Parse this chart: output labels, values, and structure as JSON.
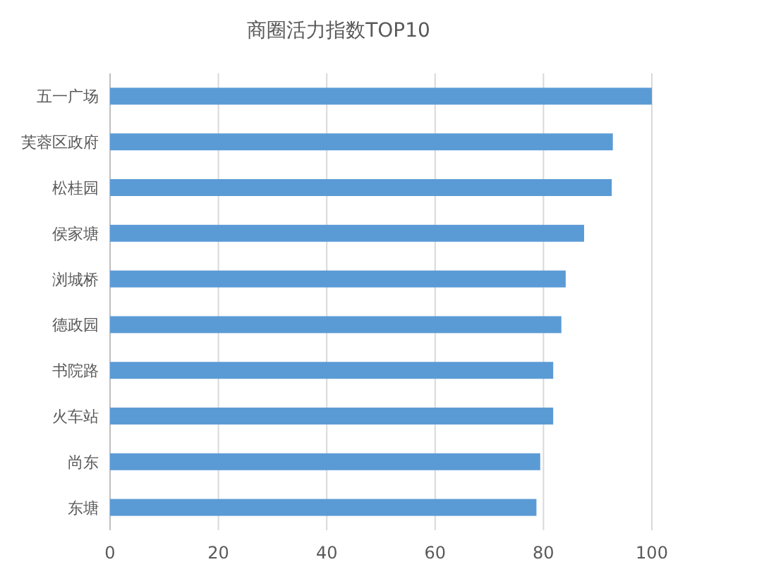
{
  "chart_data": {
    "type": "bar",
    "orientation": "horizontal",
    "title": "商圈活力指数TOP10",
    "categories": [
      "五一广场",
      "芙蓉区政府",
      "松桂园",
      "侯家塘",
      "浏城桥",
      "德政园",
      "书院路",
      "火车站",
      "尚东",
      "东塘"
    ],
    "values": [
      100,
      92.8,
      92.6,
      87.5,
      84.1,
      83.3,
      81.8,
      81.8,
      79.4,
      78.7
    ],
    "color": "#5b9bd5",
    "xlim": [
      0,
      100
    ],
    "xticks": [
      0,
      20,
      40,
      60,
      80,
      100
    ],
    "grid": "x"
  }
}
